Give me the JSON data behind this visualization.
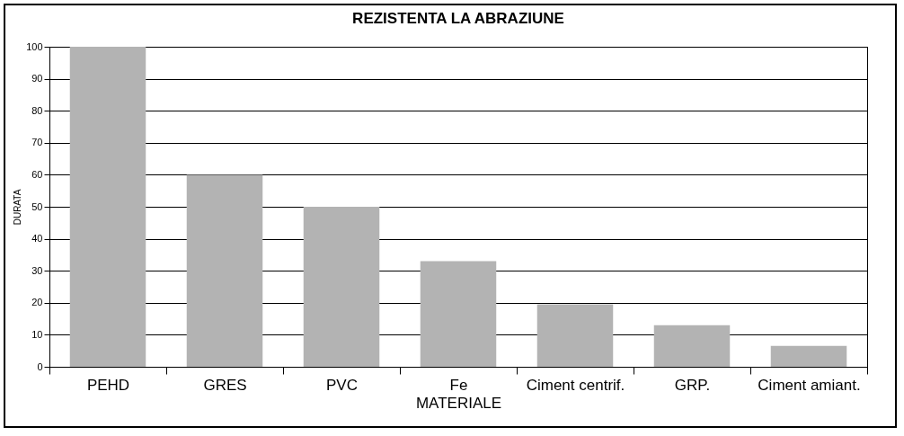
{
  "chart_data": {
    "type": "bar",
    "title": "REZISTENTA LA ABRAZIUNE",
    "xlabel": "MATERIALE",
    "ylabel": "DURATA",
    "categories": [
      "PEHD",
      "GRES",
      "PVC",
      "Fe",
      "Ciment centrif.",
      "GRP.",
      "Ciment amiant."
    ],
    "values": [
      100,
      60,
      50,
      33,
      19.5,
      13,
      6.5
    ],
    "color": "#b3b3b3",
    "ylim": [
      0,
      100
    ],
    "yticks": [
      0,
      10,
      20,
      30,
      40,
      50,
      60,
      70,
      80,
      90,
      100
    ],
    "grid": "y"
  }
}
